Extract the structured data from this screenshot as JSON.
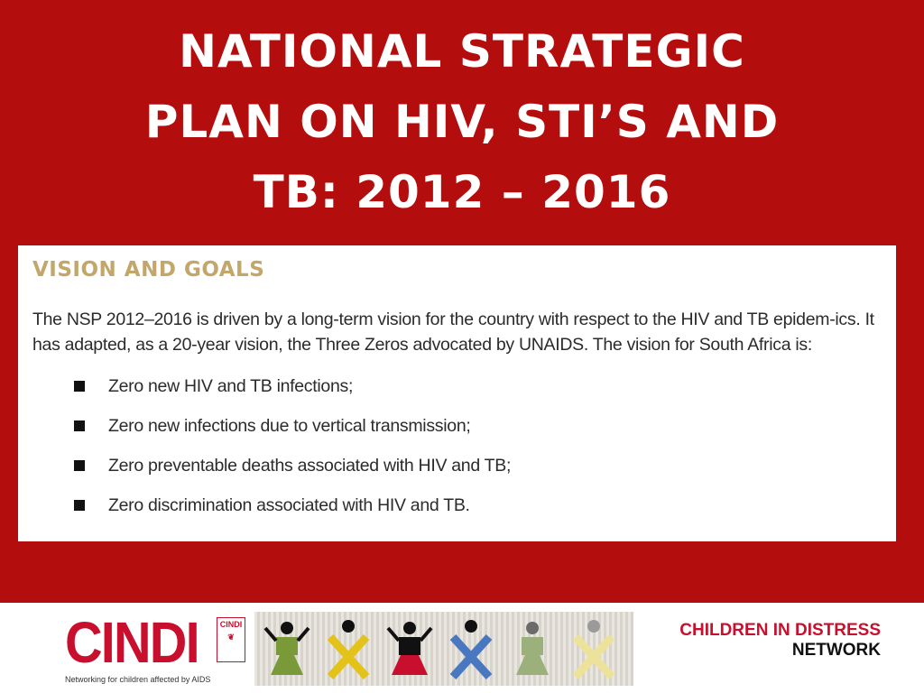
{
  "slide": {
    "title_lines": [
      "NATIONAL STRATEGIC",
      "PLAN ON HIV, STI’S AND",
      "TB: 2012 – 2016"
    ]
  },
  "excerpt": {
    "heading": "VISION AND GOALS",
    "paragraph": "The NSP 2012–2016 is driven by a long-term vision for the country with respect to the HIV and TB epidem-ics. It has adapted, as a 20-year vision, the Three Zeros advocated by UNAIDS. The vision for South Africa is:",
    "bullets": [
      "Zero new HIV and TB infections;",
      "Zero new infections due to vertical transmission;",
      "Zero preventable deaths associated with HIV and TB;",
      "Zero discrimination associated with HIV and TB."
    ]
  },
  "footer": {
    "logo_word": "CINDI",
    "logo_badge": "CINDI",
    "tagline": "Networking for children affected by AIDS",
    "network_line1": "CHILDREN IN DISTRESS",
    "network_line2": "NETWORK"
  },
  "colors": {
    "background": "#b30d0d",
    "heading_tan": "#c2a66a",
    "brand_red": "#c8102e",
    "bead_figures": [
      "#7a9a3a",
      "#e3c21a",
      "#c8102e",
      "#4a78c0",
      "#9bb07a",
      "#ece29a"
    ]
  }
}
